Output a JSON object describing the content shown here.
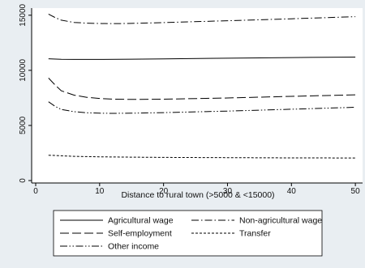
{
  "chart_data": {
    "type": "line",
    "title": "",
    "xlabel": "Distance to rural town (>5000 & <15000)",
    "ylabel": "",
    "xlim": [
      0,
      51
    ],
    "ylim": [
      0,
      15500
    ],
    "xticks": [
      0,
      10,
      20,
      30,
      40,
      50
    ],
    "yticks": [
      0,
      5000,
      10000,
      15000
    ],
    "grid": false,
    "legend_placement": "bottom",
    "series": [
      {
        "name": "Agricultural wage",
        "dash": "solid",
        "x": [
          2,
          4,
          6,
          10,
          15,
          20,
          30,
          40,
          50
        ],
        "y": [
          11050,
          11000,
          10990,
          10990,
          11010,
          11040,
          11100,
          11160,
          11200
        ]
      },
      {
        "name": "Non-agricultural wage",
        "dash": "dashdot",
        "x": [
          2,
          3,
          4,
          6,
          8,
          10,
          12,
          15,
          20,
          30,
          40,
          50
        ],
        "y": [
          15100,
          14800,
          14550,
          14350,
          14280,
          14250,
          14240,
          14260,
          14330,
          14500,
          14680,
          14870
        ]
      },
      {
        "name": "Self-employment",
        "dash": "longdash",
        "x": [
          2,
          3,
          4,
          6,
          8,
          10,
          12,
          15,
          20,
          30,
          40,
          50
        ],
        "y": [
          9300,
          8700,
          8150,
          7750,
          7550,
          7450,
          7390,
          7360,
          7380,
          7490,
          7640,
          7780
        ]
      },
      {
        "name": "Transfer",
        "dash": "shortdash",
        "x": [
          2,
          4,
          6,
          10,
          15,
          20,
          30,
          40,
          50
        ],
        "y": [
          2300,
          2250,
          2200,
          2150,
          2120,
          2100,
          2080,
          2060,
          2050
        ]
      },
      {
        "name": "Other income",
        "dash": "dashdotdot",
        "x": [
          2,
          3,
          4,
          6,
          8,
          10,
          12,
          15,
          20,
          30,
          40,
          50
        ],
        "y": [
          7150,
          6750,
          6450,
          6250,
          6150,
          6110,
          6100,
          6110,
          6160,
          6300,
          6470,
          6650
        ]
      }
    ]
  }
}
